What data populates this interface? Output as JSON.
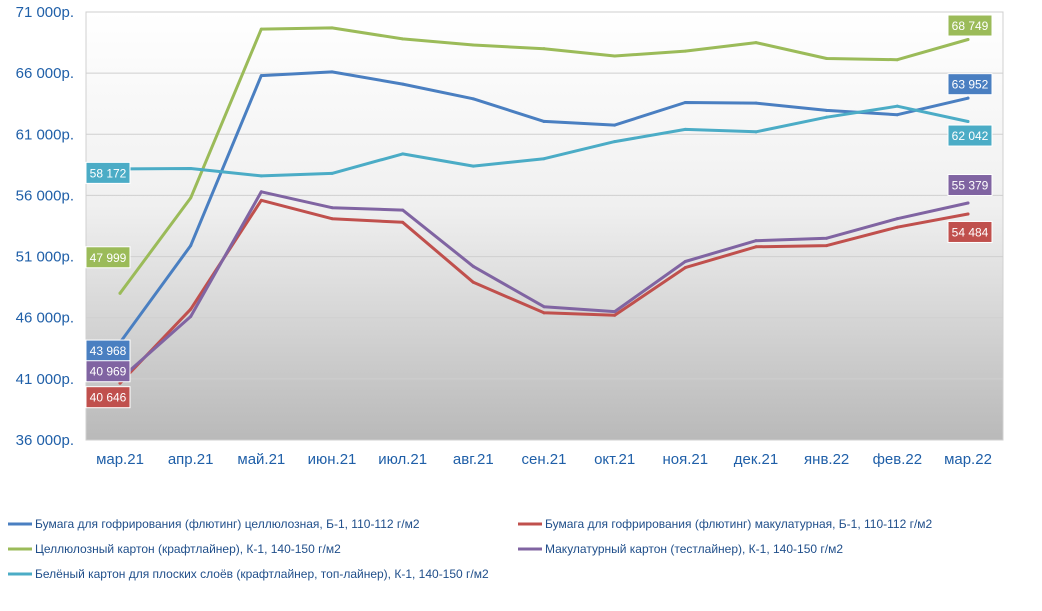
{
  "chart_data": {
    "type": "line",
    "categories": [
      "мар.21",
      "апр.21",
      "май.21",
      "июн.21",
      "июл.21",
      "авг.21",
      "сен.21",
      "окт.21",
      "ноя.21",
      "дек.21",
      "янв.22",
      "фев.22",
      "мар.22"
    ],
    "y_ticks": [
      "36 000р.",
      "41 000р.",
      "46 000р.",
      "51 000р.",
      "56 000р.",
      "61 000р.",
      "66 000р.",
      "71 000р."
    ],
    "ylim": [
      36000,
      71000
    ],
    "grid": true,
    "legend_position": "bottom",
    "series": [
      {
        "name": "Бумага для гофрирования (флютинг) целлюлозная, Б-1, 110-112 г/м2",
        "color": "#4a7fc1",
        "values": [
          43968,
          51900,
          65800,
          66100,
          65100,
          63900,
          62050,
          61750,
          63600,
          63550,
          62950,
          62600,
          63952
        ],
        "start_label": "43 968",
        "end_label": "63 952"
      },
      {
        "name": "Бумага для гофрирования (флютинг) макулатурная, Б-1, 110-112 г/м2",
        "color": "#c0504d",
        "values": [
          40646,
          46700,
          55600,
          54100,
          53800,
          48900,
          46400,
          46200,
          50100,
          51800,
          51900,
          53400,
          54484
        ],
        "start_label": "40 646",
        "end_label": "54 484"
      },
      {
        "name": "Целлюлозный картон (крафтлайнер), К-1, 140-150 г/м2",
        "color": "#9bbb59",
        "values": [
          47999,
          55800,
          69600,
          69700,
          68800,
          68300,
          68000,
          67400,
          67800,
          68500,
          67200,
          67100,
          68749
        ],
        "start_label": "47 999",
        "end_label": "68 749"
      },
      {
        "name": "Макулатурный картон (тестлайнер), К-1, 140-150 г/м2",
        "color": "#8064a2",
        "values": [
          40969,
          46100,
          56300,
          55000,
          54800,
          50200,
          46900,
          46500,
          50600,
          52300,
          52500,
          54100,
          55379
        ],
        "start_label": "40 969",
        "end_label": "55 379"
      },
      {
        "name": "Белёный картон для плоских слоёв (крафтлайнер, топ-лайнер), К-1, 140-150 г/м2",
        "color": "#4bacc6",
        "values": [
          58172,
          58200,
          57600,
          57800,
          59400,
          58400,
          59000,
          60400,
          61400,
          61200,
          62400,
          63300,
          62042
        ],
        "start_label": "58 172",
        "end_label": "62 042"
      }
    ]
  }
}
